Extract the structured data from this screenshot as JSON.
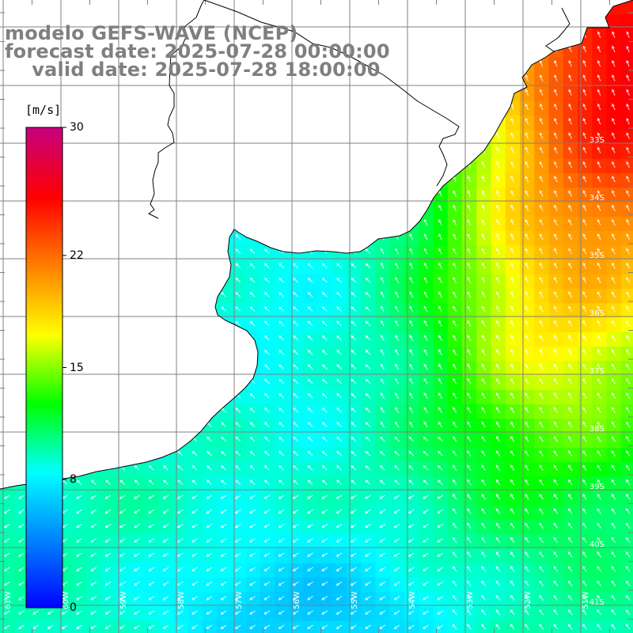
{
  "title": {
    "line1": "modelo GEFS-WAVE (NCEP)",
    "line2": "forecast date: 2025-07-28 00:00:00",
    "line3": "    valid date: 2025-07-28 18:00:00"
  },
  "colorbar": {
    "unit": "[m/s]",
    "min": 0,
    "max": 30,
    "ticks": [
      {
        "value": 30,
        "label": "30"
      },
      {
        "value": 22,
        "label": "22"
      },
      {
        "value": 15,
        "label": "15"
      },
      {
        "value": 8,
        "label": "8"
      },
      {
        "value": 0,
        "label": "0"
      }
    ],
    "colors": [
      "#0000ff",
      "#0080ff",
      "#00ffff",
      "#00ff00",
      "#ffff00",
      "#ff8000",
      "#ff0000",
      "#c8007a"
    ]
  },
  "map": {
    "lat_labels": [
      {
        "lat": -33,
        "label": "33S"
      },
      {
        "lat": -34,
        "label": "34S"
      },
      {
        "lat": -35,
        "label": "35S"
      },
      {
        "lat": -36,
        "label": "36S"
      },
      {
        "lat": -37,
        "label": "37S"
      },
      {
        "lat": -38,
        "label": "38S"
      },
      {
        "lat": -39,
        "label": "39S"
      },
      {
        "lat": -40,
        "label": "40S"
      },
      {
        "lat": -41,
        "label": "41S"
      }
    ],
    "lon_labels": [
      {
        "lon": -61,
        "label": "61W"
      },
      {
        "lon": -60,
        "label": "60W"
      },
      {
        "lon": -59,
        "label": "59W"
      },
      {
        "lon": -58,
        "label": "58W"
      },
      {
        "lon": -57,
        "label": "57W"
      },
      {
        "lon": -56,
        "label": "56W"
      },
      {
        "lon": -55,
        "label": "55W"
      },
      {
        "lon": -54,
        "label": "54W"
      },
      {
        "lon": -53,
        "label": "53W"
      },
      {
        "lon": -52,
        "label": "52W"
      },
      {
        "lon": -51,
        "label": "51W"
      }
    ],
    "colors": {
      "land": "#ffffff",
      "coast": "#000000",
      "grid": "#808080",
      "arrows": "#ffffff"
    }
  }
}
